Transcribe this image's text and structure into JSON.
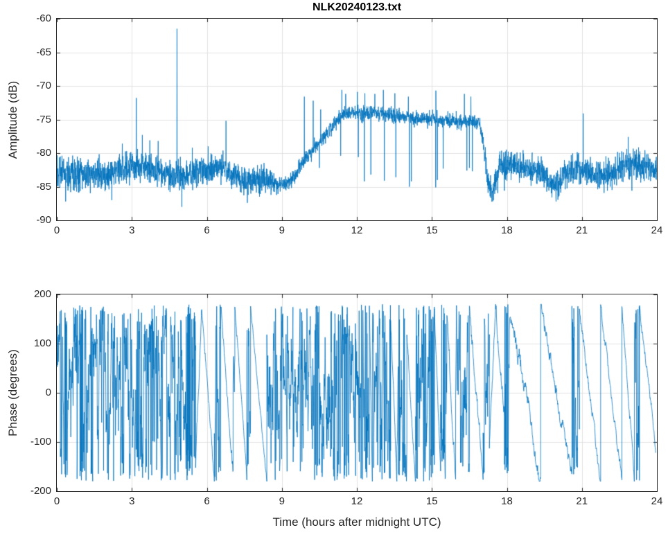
{
  "colors": {
    "line": "#0072BD",
    "axis": "#262626",
    "grid": "#e2e2e2",
    "tick_label": "#262626",
    "title": "#000000",
    "background": "#ffffff"
  },
  "chart_data": [
    {
      "type": "line",
      "name": "amplitude",
      "title": "NLK20240123.txt",
      "ylabel": "Amplitude (dB)",
      "xlabel": "",
      "xlim": [
        0,
        24
      ],
      "ylim": [
        -90,
        -60
      ],
      "xticks": [
        0,
        3,
        6,
        9,
        12,
        15,
        18,
        21,
        24
      ],
      "yticks": [
        -90,
        -85,
        -80,
        -75,
        -70,
        -65,
        -60
      ],
      "grid": true,
      "legend": null,
      "baseline_dB": [
        [
          0,
          -83.2
        ],
        [
          0.8,
          -82.9
        ],
        [
          1.6,
          -83.1
        ],
        [
          2.4,
          -82.9
        ],
        [
          3.0,
          -82.4
        ],
        [
          3.4,
          -82.1
        ],
        [
          4.0,
          -82.3
        ],
        [
          4.6,
          -83.4
        ],
        [
          5.2,
          -83.2
        ],
        [
          5.8,
          -82.6
        ],
        [
          6.2,
          -82.4
        ],
        [
          6.7,
          -82.3
        ],
        [
          7.1,
          -83.2
        ],
        [
          7.5,
          -84.3
        ],
        [
          7.9,
          -83.8
        ],
        [
          8.4,
          -84.1
        ],
        [
          8.9,
          -84.6
        ],
        [
          9.2,
          -84.6
        ],
        [
          9.5,
          -83.6
        ],
        [
          9.8,
          -81.6
        ],
        [
          10.2,
          -79.6
        ],
        [
          10.6,
          -77.8
        ],
        [
          11.0,
          -76.0
        ],
        [
          11.4,
          -74.4
        ],
        [
          11.8,
          -73.9
        ],
        [
          12.3,
          -74.2
        ],
        [
          12.8,
          -74.0
        ],
        [
          13.4,
          -74.3
        ],
        [
          14.0,
          -74.6
        ],
        [
          14.6,
          -74.9
        ],
        [
          15.2,
          -75.0
        ],
        [
          15.8,
          -75.1
        ],
        [
          16.4,
          -75.3
        ],
        [
          16.9,
          -75.5
        ],
        [
          17.05,
          -78.5
        ],
        [
          17.25,
          -84.5
        ],
        [
          17.4,
          -86.3
        ],
        [
          17.6,
          -83.5
        ],
        [
          17.8,
          -81.8
        ],
        [
          18.1,
          -81.6
        ],
        [
          18.4,
          -81.8
        ],
        [
          18.7,
          -82.4
        ],
        [
          19.0,
          -82.1
        ],
        [
          19.3,
          -82.6
        ],
        [
          19.6,
          -83.8
        ],
        [
          19.85,
          -84.9
        ],
        [
          20.1,
          -84.0
        ],
        [
          20.5,
          -82.9
        ],
        [
          20.9,
          -82.5
        ],
        [
          21.3,
          -82.9
        ],
        [
          21.7,
          -83.4
        ],
        [
          22.1,
          -83.0
        ],
        [
          22.5,
          -82.2
        ],
        [
          22.9,
          -81.6
        ],
        [
          23.3,
          -81.9
        ],
        [
          23.7,
          -82.3
        ],
        [
          24.0,
          -82.6
        ]
      ],
      "noise_sigma_dB": [
        [
          0,
          1.15
        ],
        [
          8.7,
          1.0
        ],
        [
          8.9,
          0.45
        ],
        [
          9.5,
          0.6
        ],
        [
          10.6,
          0.55
        ],
        [
          16.95,
          0.55
        ],
        [
          17.1,
          0.8
        ],
        [
          17.5,
          1.05
        ],
        [
          24,
          1.05
        ]
      ],
      "spikes_up": [
        [
          2.62,
          -78.6
        ],
        [
          3.18,
          -71.8
        ],
        [
          3.42,
          -77.3
        ],
        [
          3.72,
          -78.1
        ],
        [
          4.05,
          -78.2
        ],
        [
          4.81,
          -61.5
        ],
        [
          5.42,
          -79.2
        ],
        [
          6.05,
          -79.0
        ],
        [
          6.77,
          -75.2
        ],
        [
          9.9,
          -71.6
        ],
        [
          10.25,
          -72.2
        ],
        [
          10.55,
          -73.5
        ],
        [
          11.4,
          -70.6
        ],
        [
          11.55,
          -71.2
        ],
        [
          12.02,
          -70.9
        ],
        [
          12.32,
          -71.1
        ],
        [
          12.72,
          -71.2
        ],
        [
          13.06,
          -70.6
        ],
        [
          13.52,
          -71.1
        ],
        [
          14.06,
          -71.6
        ],
        [
          15.16,
          -70.7
        ],
        [
          16.3,
          -71.2
        ],
        [
          16.56,
          -71.6
        ],
        [
          21.05,
          -74.1
        ],
        [
          22.85,
          -77.6
        ]
      ],
      "spikes_down": [
        [
          0.35,
          -87.2
        ],
        [
          2.2,
          -87.0
        ],
        [
          5.0,
          -88.0
        ],
        [
          7.62,
          -87.4
        ],
        [
          10.18,
          -81.3
        ],
        [
          10.5,
          -82.2
        ],
        [
          11.35,
          -80.4
        ],
        [
          12.06,
          -80.6
        ],
        [
          12.3,
          -84.2
        ],
        [
          12.56,
          -83.2
        ],
        [
          13.1,
          -84.1
        ],
        [
          13.56,
          -83.6
        ],
        [
          14.1,
          -85.0
        ],
        [
          14.18,
          -84.2
        ],
        [
          15.15,
          -85.1
        ],
        [
          15.22,
          -84.0
        ],
        [
          15.45,
          -82.3
        ],
        [
          16.4,
          -82.6
        ],
        [
          16.5,
          -82.2
        ],
        [
          16.62,
          -82.7
        ],
        [
          17.9,
          -85.6
        ],
        [
          19.8,
          -86.6
        ],
        [
          23.0,
          -85.6
        ]
      ]
    },
    {
      "type": "line",
      "name": "phase",
      "title": "",
      "ylabel": "Phase (degrees)",
      "xlabel": "Time (hours after midnight UTC)",
      "xlim": [
        0,
        24
      ],
      "ylim": [
        -200,
        200
      ],
      "xticks": [
        0,
        3,
        6,
        9,
        12,
        15,
        18,
        21,
        24
      ],
      "yticks": [
        -200,
        -100,
        0,
        100,
        200
      ],
      "grid": true,
      "legend": null,
      "wrap_range": [
        -180,
        180
      ],
      "segments": [
        {
          "t0": 0,
          "t1": 5.55,
          "mode": "dense"
        },
        {
          "t0": 5.55,
          "t1": 5.78,
          "mode": "ramp",
          "p0": -150,
          "p1": 168,
          "noise": 18
        },
        {
          "t0": 5.78,
          "t1": 6.3,
          "mode": "ramp",
          "p0": 168,
          "p1": -176,
          "noise": 14
        },
        {
          "t0": 6.3,
          "t1": 6.55,
          "mode": "dense"
        },
        {
          "t0": 6.55,
          "t1": 7.05,
          "mode": "ramp",
          "p0": 178,
          "p1": -160,
          "noise": 16
        },
        {
          "t0": 7.05,
          "t1": 7.12,
          "mode": "dense"
        },
        {
          "t0": 7.12,
          "t1": 7.6,
          "mode": "ramp",
          "p0": 170,
          "p1": -178,
          "noise": 12
        },
        {
          "t0": 7.6,
          "t1": 7.75,
          "mode": "dense"
        },
        {
          "t0": 7.75,
          "t1": 8.4,
          "mode": "ramp",
          "p0": 178,
          "p1": -178,
          "noise": 8
        },
        {
          "t0": 8.4,
          "t1": 12.5,
          "mode": "dense"
        },
        {
          "t0": 12.5,
          "t1": 12.62,
          "mode": "ramp",
          "p0": 178,
          "p1": -175,
          "noise": 10
        },
        {
          "t0": 12.62,
          "t1": 13.35,
          "mode": "dense"
        },
        {
          "t0": 13.35,
          "t1": 13.6,
          "mode": "ramp",
          "p0": 150,
          "p1": -178,
          "noise": 14
        },
        {
          "t0": 13.6,
          "t1": 14.0,
          "mode": "dense"
        },
        {
          "t0": 14.0,
          "t1": 14.35,
          "mode": "ramp",
          "p0": 120,
          "p1": -168,
          "noise": 20
        },
        {
          "t0": 14.35,
          "t1": 15.1,
          "mode": "dense"
        },
        {
          "t0": 15.1,
          "t1": 15.35,
          "mode": "ramp",
          "p0": 178,
          "p1": -150,
          "noise": 16
        },
        {
          "t0": 15.35,
          "t1": 15.6,
          "mode": "dense"
        },
        {
          "t0": 15.6,
          "t1": 15.95,
          "mode": "ramp",
          "p0": 160,
          "p1": -170,
          "noise": 24
        },
        {
          "t0": 15.95,
          "t1": 16.5,
          "mode": "dense"
        },
        {
          "t0": 16.5,
          "t1": 17.05,
          "mode": "ramp",
          "p0": 178,
          "p1": -178,
          "noise": 20
        },
        {
          "t0": 17.05,
          "t1": 17.3,
          "mode": "dense"
        },
        {
          "t0": 17.3,
          "t1": 17.55,
          "mode": "ramp",
          "p0": -120,
          "p1": 175,
          "noise": 18
        },
        {
          "t0": 17.55,
          "t1": 17.9,
          "mode": "ramp",
          "p0": 175,
          "p1": -30,
          "noise": 24
        },
        {
          "t0": 17.9,
          "t1": 18.1,
          "mode": "dense"
        },
        {
          "t0": 18.1,
          "t1": 18.55,
          "mode": "ramp",
          "p0": 130,
          "p1": 55,
          "noise": 30
        },
        {
          "t0": 18.55,
          "t1": 19.35,
          "mode": "ramp",
          "p0": 55,
          "p1": -178,
          "noise": 22
        },
        {
          "t0": 19.35,
          "t1": 20.6,
          "mode": "ramp",
          "p0": 178,
          "p1": -178,
          "noise": 18
        },
        {
          "t0": 20.6,
          "t1": 20.9,
          "mode": "dense"
        },
        {
          "t0": 20.9,
          "t1": 21.75,
          "mode": "ramp",
          "p0": 178,
          "p1": -178,
          "noise": 14
        },
        {
          "t0": 21.75,
          "t1": 22.6,
          "mode": "ramp",
          "p0": 178,
          "p1": -178,
          "noise": 12
        },
        {
          "t0": 22.6,
          "t1": 23.1,
          "mode": "ramp",
          "p0": 178,
          "p1": -178,
          "noise": 12
        },
        {
          "t0": 23.1,
          "t1": 23.3,
          "mode": "dense"
        },
        {
          "t0": 23.3,
          "t1": 23.95,
          "mode": "ramp",
          "p0": 178,
          "p1": -110,
          "noise": 12
        }
      ]
    }
  ]
}
